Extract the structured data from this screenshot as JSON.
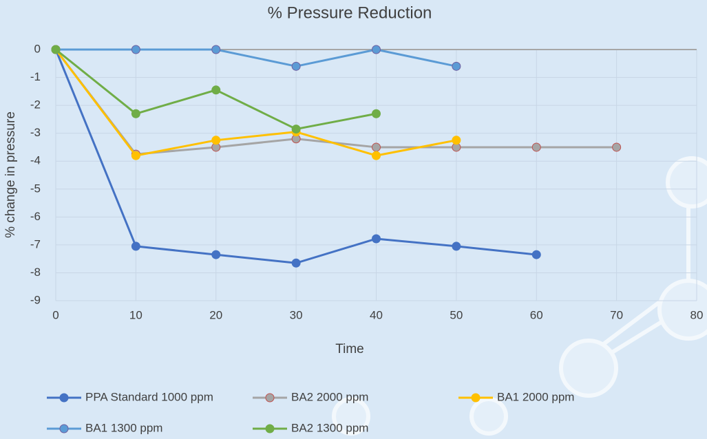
{
  "chart_data": {
    "type": "line",
    "title": "% Pressure Reduction",
    "xlabel": "Time",
    "ylabel": "% change in pressure",
    "xlim": [
      0,
      80
    ],
    "xticks": [
      0,
      10,
      20,
      30,
      40,
      50,
      60,
      70,
      80
    ],
    "ylim": [
      -9,
      0
    ],
    "yticks": [
      0,
      -1,
      -2,
      -3,
      -4,
      -5,
      -6,
      -7,
      -8,
      -9
    ],
    "grid": true,
    "series": [
      {
        "name": "PPA Standard 1000 ppm",
        "color": "#4472c4",
        "marker_fill": "#4472c4",
        "marker_edge": "#4472c4",
        "x": [
          0,
          10,
          20,
          30,
          40,
          50,
          60
        ],
        "values": [
          0,
          -7.05,
          -7.35,
          -7.65,
          -6.78,
          -7.05,
          -7.35
        ]
      },
      {
        "name": "BA2 2000 ppm",
        "color": "#a5a5a5",
        "marker_fill": "#a5a5a5",
        "marker_edge": "#c0504d",
        "x": [
          0,
          10,
          20,
          30,
          40,
          50,
          60,
          70
        ],
        "values": [
          0,
          -3.75,
          -3.5,
          -3.2,
          -3.5,
          -3.5,
          -3.5,
          -3.5
        ]
      },
      {
        "name": "BA1 2000 ppm",
        "color": "#ffc000",
        "marker_fill": "#ffc000",
        "marker_edge": "#ffc000",
        "x": [
          0,
          10,
          20,
          30,
          40,
          50
        ],
        "values": [
          0,
          -3.8,
          -3.25,
          -2.95,
          -3.8,
          -3.25
        ]
      },
      {
        "name": "BA1 1300 ppm",
        "color": "#5b9bd5",
        "marker_fill": "#5b9bd5",
        "marker_edge": "#7060a0",
        "x": [
          0,
          10,
          20,
          30,
          40,
          50
        ],
        "values": [
          0,
          0,
          0,
          -0.6,
          0,
          -0.6
        ]
      },
      {
        "name": "BA2 1300 ppm",
        "color": "#70ad47",
        "marker_fill": "#70ad47",
        "marker_edge": "#70ad47",
        "x": [
          0,
          10,
          20,
          30,
          40
        ],
        "values": [
          0,
          -2.3,
          -1.45,
          -2.85,
          -2.3
        ]
      }
    ]
  }
}
